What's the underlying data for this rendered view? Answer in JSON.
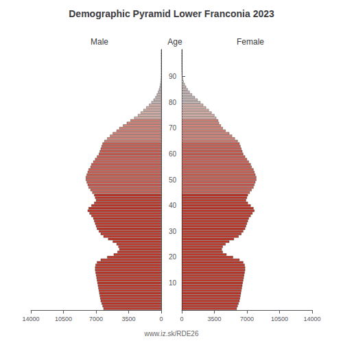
{
  "chart_data": {
    "type": "bar",
    "orientation": "horizontal",
    "title": "Demographic Pyramid Lower Franconia 2023",
    "ylabel": "Age",
    "annotations": [
      "www.iz.sk/RDE26"
    ],
    "grid": false,
    "categories": [
      null,
      null,
      null,
      null,
      null,
      null,
      null,
      null,
      null,
      null,
      "10",
      null,
      null,
      null,
      null,
      null,
      null,
      null,
      null,
      null,
      "20",
      null,
      null,
      null,
      null,
      null,
      null,
      null,
      null,
      null,
      "30",
      null,
      null,
      null,
      null,
      null,
      null,
      null,
      null,
      null,
      "40",
      null,
      null,
      null,
      null,
      null,
      null,
      null,
      null,
      null,
      "50",
      null,
      null,
      null,
      null,
      null,
      null,
      null,
      null,
      null,
      "60",
      null,
      null,
      null,
      null,
      null,
      null,
      null,
      null,
      null,
      "70",
      null,
      null,
      null,
      null,
      null,
      null,
      null,
      null,
      null,
      "80",
      null,
      null,
      null,
      null,
      null,
      null,
      null,
      null,
      null,
      "90",
      null,
      null,
      null,
      null,
      null,
      null,
      null,
      null,
      null,
      null
    ],
    "colors": [
      "#c0392b",
      "#c0392b",
      "#c0392b",
      "#c0392b",
      "#c0392b",
      "#c0392b",
      "#c0392b",
      "#c0392b",
      "#c0392b",
      "#c0392b",
      "#c0392b",
      "#c0392b",
      "#c0392b",
      "#c0392b",
      "#c0392b",
      "#c0392b",
      "#c0392b",
      "#c0392b",
      "#c0392b",
      "#c0392b",
      "#c0392b",
      "#c0392b",
      "#c0392b",
      "#c0392b",
      "#c0392b",
      "#c0392b",
      "#c0392b",
      "#c0392b",
      "#c0392b",
      "#c0392b",
      "#c0392b",
      "#c0392b",
      "#c0392b",
      "#c0392b",
      "#c0392b",
      "#c0392b",
      "#c0392b",
      "#c0392b",
      "#c0392b",
      "#c0392b",
      "#c0392b",
      "#c0392b",
      "#c0392b",
      "#c0392b",
      "#c0392b",
      "#cc6055",
      "#cc6055",
      "#cc6055",
      "#cc6055",
      "#cc6055",
      "#cc6055",
      "#cc6055",
      "#cc6055",
      "#cc6055",
      "#cc6055",
      "#cc6055",
      "#cc6055",
      "#cc6055",
      "#cc6055",
      "#cc6055",
      "#cc6055",
      "#cc6055",
      "#cc6055",
      "#cc6055",
      "#cc6055",
      "#d4857a",
      "#d4857a",
      "#d4857a",
      "#d4857a",
      "#d4857a",
      "#d4857a",
      "#d4857a",
      "#d4857a",
      "#d4857a",
      "#d4b0a8",
      "#d4b0a8",
      "#d4b0a8",
      "#d4b0a8",
      "#d4b0a8",
      "#d4b0a8",
      "#c8b8b8",
      "#c8b8b8",
      "#c8b8b8",
      "#c8b8b8",
      "#c8b8b8",
      "#c8b8b8",
      "#c8b8b8",
      "#c8b8b8",
      "#c8c4c4",
      "#c8c4c4",
      "#c8c4c4",
      "#c8c4c4",
      "#c8c4c4",
      "#c8c4c4",
      "#c8c4c4",
      "#c8c4c4",
      "#c8c4c4",
      "#c8c4c4",
      "#c8c4c4",
      "#c8c4c4",
      "#c8c4c4"
    ],
    "xlim": [
      0,
      14000
    ],
    "xticks": [
      0,
      3500,
      7000,
      10500,
      14000
    ],
    "series": [
      {
        "name": "Male",
        "values": [
          6200,
          6300,
          6400,
          6500,
          6550,
          6600,
          6650,
          6700,
          6750,
          6800,
          6850,
          6900,
          6950,
          7000,
          7050,
          7100,
          7100,
          7050,
          6900,
          6500,
          5800,
          5100,
          4700,
          4500,
          4600,
          4800,
          5200,
          5700,
          6200,
          6500,
          6700,
          6900,
          7000,
          7100,
          7200,
          7300,
          7500,
          7700,
          7900,
          7800,
          7500,
          7200,
          7000,
          7100,
          7200,
          7400,
          7600,
          7800,
          7900,
          8000,
          8100,
          8100,
          8000,
          7900,
          7800,
          7600,
          7500,
          7300,
          7100,
          6900,
          6700,
          6600,
          6500,
          6400,
          6300,
          6100,
          5800,
          5500,
          5200,
          4800,
          4500,
          4100,
          3700,
          3300,
          2900,
          2500,
          2200,
          1900,
          1600,
          1300,
          1050,
          820,
          620,
          470,
          340,
          240,
          160,
          100,
          60,
          35,
          18,
          9,
          4,
          2,
          1,
          0,
          0,
          0,
          0,
          0,
          0
        ]
      },
      {
        "name": "Female",
        "values": [
          5900,
          6000,
          6100,
          6200,
          6250,
          6300,
          6350,
          6400,
          6450,
          6500,
          6550,
          6600,
          6650,
          6700,
          6750,
          6800,
          6800,
          6750,
          6600,
          6200,
          5500,
          4800,
          4400,
          4300,
          4400,
          4700,
          5100,
          5600,
          6100,
          6400,
          6600,
          6800,
          6900,
          7000,
          7100,
          7200,
          7400,
          7600,
          7800,
          7700,
          7400,
          7100,
          6900,
          7000,
          7100,
          7300,
          7500,
          7700,
          7800,
          7900,
          8000,
          8000,
          7900,
          7800,
          7700,
          7500,
          7400,
          7200,
          7000,
          6800,
          6600,
          6500,
          6400,
          6300,
          6200,
          6000,
          5700,
          5400,
          5100,
          4700,
          4400,
          4200,
          4000,
          3900,
          3700,
          3500,
          3200,
          2900,
          2600,
          2300,
          2000,
          1700,
          1400,
          1100,
          840,
          630,
          460,
          320,
          200,
          120,
          65,
          35,
          16,
          7,
          3,
          1,
          0,
          0,
          0,
          0,
          0
        ]
      }
    ]
  }
}
